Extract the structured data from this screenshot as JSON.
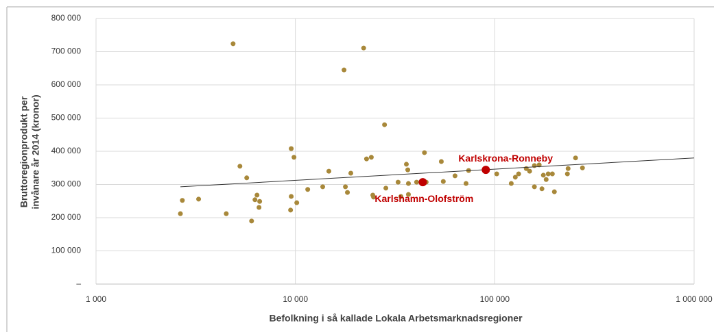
{
  "chart_data": {
    "type": "scatter",
    "x_label": "Befolkning i så kallade Lokala Arbetsmarknadsregioner",
    "y_label": [
      "Bruttoregionprodukt per",
      "invånare år 2014 (kronor)"
    ],
    "xscale": "log",
    "grid": true,
    "xlim": [
      1000,
      1000000
    ],
    "xticks": [
      {
        "value": 1000,
        "label": "1 000"
      },
      {
        "value": 10000,
        "label": "10 000"
      },
      {
        "value": 100000,
        "label": "100 000"
      },
      {
        "value": 1000000,
        "label": "1 000 000"
      }
    ],
    "ylim": [
      0,
      800000
    ],
    "yticks": [
      {
        "value": 0,
        "label": "–"
      },
      {
        "value": 100000,
        "label": "100 000"
      },
      {
        "value": 200000,
        "label": "200 000"
      },
      {
        "value": 300000,
        "label": "300 000"
      },
      {
        "value": 400000,
        "label": "400 000"
      },
      {
        "value": 500000,
        "label": "500 000"
      },
      {
        "value": 600000,
        "label": "600 000"
      },
      {
        "value": 700000,
        "label": "700 000"
      },
      {
        "value": 800000,
        "label": "800 000"
      }
    ],
    "color": "#a8883a",
    "x": [
      2650,
      2710,
      3270,
      4500,
      4870,
      5270,
      5700,
      6030,
      6270,
      6420,
      6570,
      6620,
      9460,
      9530,
      9530,
      9840,
      10160,
      11530,
      13710,
      14720,
      17540,
      17820,
      18240,
      18970,
      22000,
      22750,
      24040,
      24450,
      24660,
      28000,
      28430,
      32750,
      33820,
      36040,
      36620,
      36900,
      36900,
      40550,
      44400,
      45290,
      53950,
      55200,
      63200,
      71780,
      73960,
      102300,
      121000,
      126800,
      131800,
      143900,
      149600,
      158100,
      158100,
      167100,
      172500,
      175300,
      181100,
      185400,
      194500,
      199100,
      231400,
      233300,
      254300,
      275400
    ],
    "y": [
      212000,
      252000,
      256000,
      212000,
      724000,
      355000,
      320000,
      190000,
      254000,
      268000,
      231000,
      249000,
      223000,
      264000,
      408000,
      382000,
      245000,
      285000,
      293000,
      340000,
      645000,
      293000,
      276000,
      334000,
      711000,
      377000,
      382000,
      268000,
      262000,
      480000,
      289000,
      307000,
      264000,
      361000,
      344000,
      270000,
      303000,
      307000,
      396000,
      307000,
      369000,
      309000,
      326000,
      303000,
      342000,
      332000,
      303000,
      322000,
      332000,
      348000,
      340000,
      357000,
      293000,
      359000,
      287000,
      328000,
      315000,
      332000,
      332000,
      278000,
      332000,
      348000,
      380000,
      350000
    ],
    "trendline": {
      "x": [
        2650,
        1000000
      ],
      "y": [
        293000,
        380000
      ],
      "color": "#333333"
    },
    "highlights": [
      {
        "label": "Karlskrona-Ronneby",
        "x": 90200,
        "y": 344000,
        "color": "#c00000"
      },
      {
        "label": "Karlshamn-Olofström",
        "x": 43550,
        "y": 307000,
        "color": "#c00000"
      }
    ]
  }
}
